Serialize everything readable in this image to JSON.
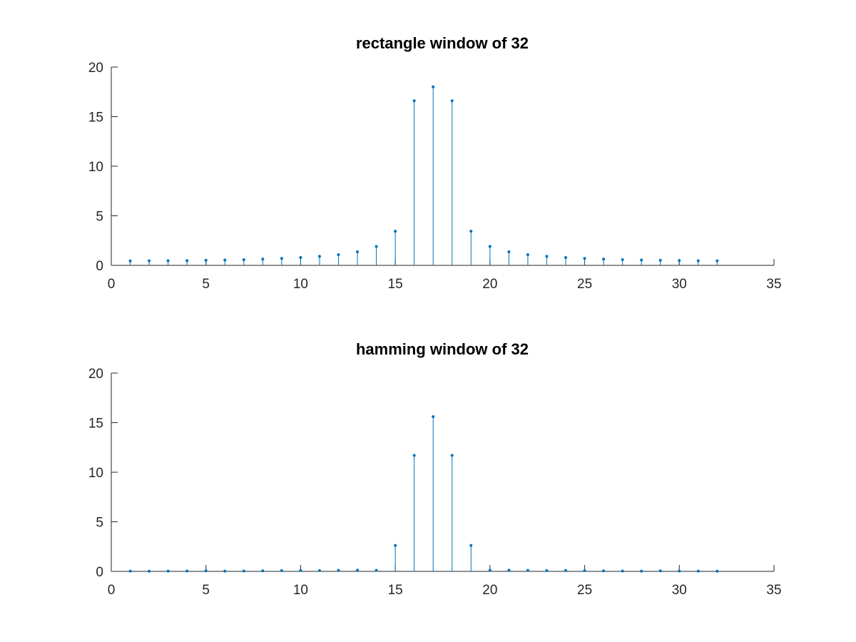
{
  "chart_data": [
    {
      "type": "stem",
      "title": "rectangle window of 32",
      "xlabel": "",
      "ylabel": "",
      "xlim": [
        0,
        35
      ],
      "ylim": [
        0,
        20
      ],
      "xticks": [
        0,
        5,
        10,
        15,
        20,
        25,
        30,
        35
      ],
      "yticks": [
        0,
        5,
        10,
        15,
        20
      ],
      "grid": false,
      "color": "#0072BD",
      "x": [
        1,
        2,
        3,
        4,
        5,
        6,
        7,
        8,
        9,
        10,
        11,
        12,
        13,
        14,
        15,
        16,
        17,
        18,
        19,
        20,
        21,
        22,
        23,
        24,
        25,
        26,
        27,
        28,
        29,
        30,
        31,
        32
      ],
      "values": [
        0.45,
        0.46,
        0.47,
        0.48,
        0.51,
        0.54,
        0.58,
        0.63,
        0.7,
        0.79,
        0.91,
        1.08,
        1.37,
        1.91,
        3.44,
        16.6,
        18.0,
        16.6,
        3.44,
        1.91,
        1.37,
        1.08,
        0.91,
        0.79,
        0.7,
        0.63,
        0.58,
        0.54,
        0.51,
        0.48,
        0.47,
        0.46
      ]
    },
    {
      "type": "stem",
      "title": "hamming window of 32",
      "xlabel": "",
      "ylabel": "",
      "xlim": [
        0,
        35
      ],
      "ylim": [
        0,
        20
      ],
      "xticks": [
        0,
        5,
        10,
        15,
        20,
        25,
        30,
        35
      ],
      "yticks": [
        0,
        5,
        10,
        15,
        20
      ],
      "grid": false,
      "color": "#0072BD",
      "x": [
        1,
        2,
        3,
        4,
        5,
        6,
        7,
        8,
        9,
        10,
        11,
        12,
        13,
        14,
        15,
        16,
        17,
        18,
        19,
        20,
        21,
        22,
        23,
        24,
        25,
        26,
        27,
        28,
        29,
        30,
        31,
        32
      ],
      "values": [
        0.03,
        0.02,
        0.03,
        0.04,
        0.05,
        0.03,
        0.04,
        0.05,
        0.07,
        0.09,
        0.08,
        0.1,
        0.12,
        0.11,
        2.62,
        11.7,
        15.6,
        11.7,
        2.62,
        0.11,
        0.12,
        0.1,
        0.08,
        0.09,
        0.07,
        0.05,
        0.04,
        0.03,
        0.05,
        0.04,
        0.03,
        0.02
      ]
    }
  ]
}
